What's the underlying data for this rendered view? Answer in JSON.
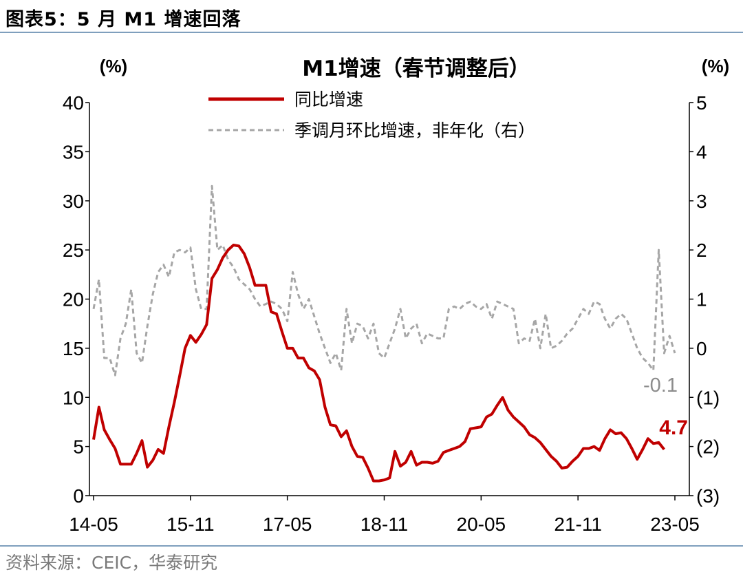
{
  "figure": {
    "label": "图表5：",
    "heading": "5 月 M1 增速回落",
    "source": "资料来源：CEIC，华泰研究"
  },
  "colors": {
    "yoy": "#c00000",
    "mom": "#a6a6a6",
    "rule": "#7f9fbd"
  },
  "chart_data": {
    "type": "line",
    "title": "M1增速（春节调整后）",
    "left_unit": "(%)",
    "right_unit": "(%)",
    "ylim_left": [
      0,
      40
    ],
    "ylim_right": [
      -3,
      5
    ],
    "y_ticks_left": [
      0,
      5,
      10,
      15,
      20,
      25,
      30,
      35,
      40
    ],
    "y_tick_labels_left": [
      "0",
      "5",
      "10",
      "15",
      "20",
      "25",
      "30",
      "35",
      "40"
    ],
    "y_ticks_right": [
      -3,
      -2,
      -1,
      0,
      1,
      2,
      3,
      4,
      5
    ],
    "y_tick_labels_right": [
      "(3)",
      "(2)",
      "(1)",
      "0",
      "1",
      "2",
      "3",
      "4",
      "5"
    ],
    "x_tick_labels": [
      "14-05",
      "15-11",
      "17-05",
      "18-11",
      "20-05",
      "21-11",
      "23-05"
    ],
    "x_tick_index": [
      0,
      18,
      36,
      54,
      72,
      90,
      108
    ],
    "x_range": [
      0,
      108
    ],
    "legend_position": "top-center",
    "series": [
      {
        "name": "同比增速",
        "axis": "left",
        "style": "solid",
        "values": [
          5.7,
          9.0,
          6.7,
          5.7,
          4.8,
          3.2,
          3.2,
          3.2,
          4.3,
          5.6,
          2.9,
          3.6,
          4.7,
          4.3,
          7.0,
          9.5,
          12.2,
          15.0,
          16.3,
          15.6,
          16.4,
          17.4,
          22.1,
          23.0,
          24.2,
          25.0,
          25.5,
          25.4,
          24.6,
          23.2,
          21.4,
          21.4,
          21.4,
          18.7,
          18.5,
          16.7,
          15.0,
          15.0,
          14.0,
          14.0,
          13.0,
          12.7,
          11.8,
          9.0,
          7.2,
          7.1,
          6.0,
          6.6,
          5.0,
          4.0,
          3.9,
          2.8,
          1.5,
          1.5,
          1.6,
          1.8,
          4.5,
          3.0,
          3.4,
          4.5,
          3.1,
          3.4,
          3.4,
          3.3,
          3.5,
          4.4,
          4.6,
          4.8,
          5.0,
          5.5,
          6.8,
          6.9,
          7.0,
          8.0,
          8.3,
          9.2,
          10.0,
          8.7,
          8.0,
          7.5,
          7.0,
          6.2,
          5.9,
          5.4,
          4.7,
          4.0,
          3.5,
          2.8,
          2.9,
          3.5,
          4.0,
          4.8,
          4.8,
          5.0,
          4.6,
          5.8,
          6.7,
          6.3,
          6.4,
          5.8,
          4.8,
          3.7,
          4.7,
          5.8,
          5.3,
          5.4,
          4.7
        ],
        "end_label": "4.7"
      },
      {
        "name": "季调月环比增速，非年化（右）",
        "axis": "right",
        "style": "dashed",
        "values": [
          0.8,
          1.4,
          -0.2,
          -0.2,
          -0.55,
          0.2,
          0.5,
          1.2,
          -0.1,
          -0.3,
          0.45,
          1.1,
          1.55,
          1.7,
          1.45,
          1.95,
          2.0,
          1.95,
          2.05,
          1.2,
          0.8,
          0.8,
          3.3,
          2.0,
          2.1,
          1.8,
          1.65,
          1.4,
          1.3,
          1.2,
          1.0,
          0.85,
          0.9,
          0.95,
          0.9,
          0.8,
          0.55,
          1.55,
          1.1,
          0.8,
          1.0,
          0.65,
          0.3,
          0.0,
          -0.3,
          -0.1,
          -0.45,
          0.8,
          0.1,
          0.5,
          0.45,
          0.2,
          0.5,
          -0.1,
          -0.2,
          0.1,
          0.4,
          0.8,
          0.2,
          0.4,
          0.5,
          0.1,
          0.3,
          0.25,
          0.2,
          0.2,
          0.8,
          0.85,
          0.8,
          0.9,
          0.95,
          0.85,
          0.8,
          0.9,
          0.6,
          0.95,
          0.9,
          0.85,
          0.8,
          0.1,
          0.2,
          0.15,
          0.6,
          0.0,
          0.7,
          0.0,
          0.05,
          0.15,
          0.3,
          0.4,
          0.6,
          0.8,
          0.7,
          0.95,
          0.9,
          0.6,
          0.4,
          0.6,
          0.7,
          0.6,
          0.3,
          0.0,
          -0.2,
          -0.3,
          -0.45,
          2.0,
          -0.1,
          0.25,
          -0.1
        ],
        "end_label": "-0.1"
      }
    ]
  }
}
